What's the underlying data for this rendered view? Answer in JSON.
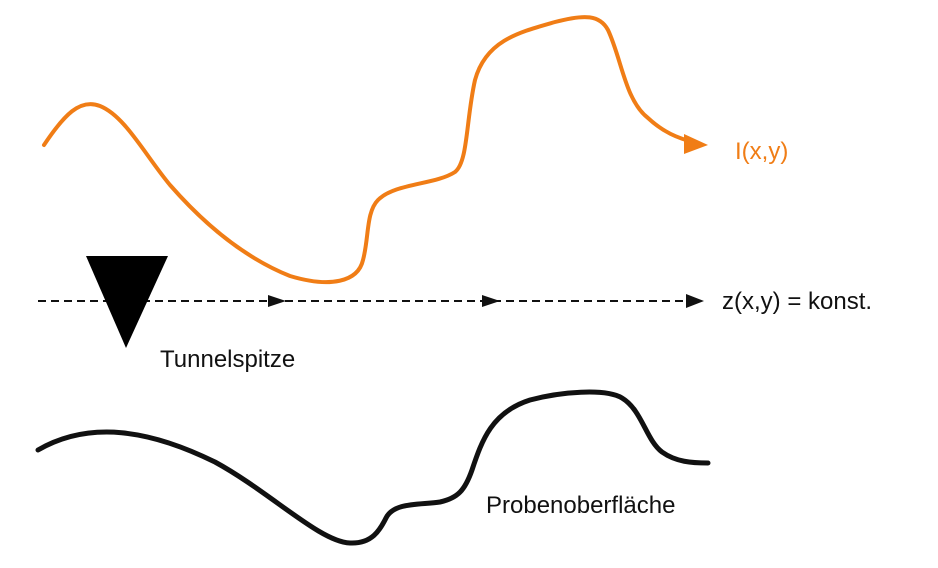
{
  "diagram": {
    "labels": {
      "current": "I(x,y)",
      "height": "z(x,y) = konst.",
      "tip": "Tunnelspitze",
      "surface": "Probenoberfläche"
    },
    "colors": {
      "current_curve": "#F07D16",
      "surface_curve": "#111111",
      "scan_line": "#111111",
      "tip": "#000000"
    }
  }
}
